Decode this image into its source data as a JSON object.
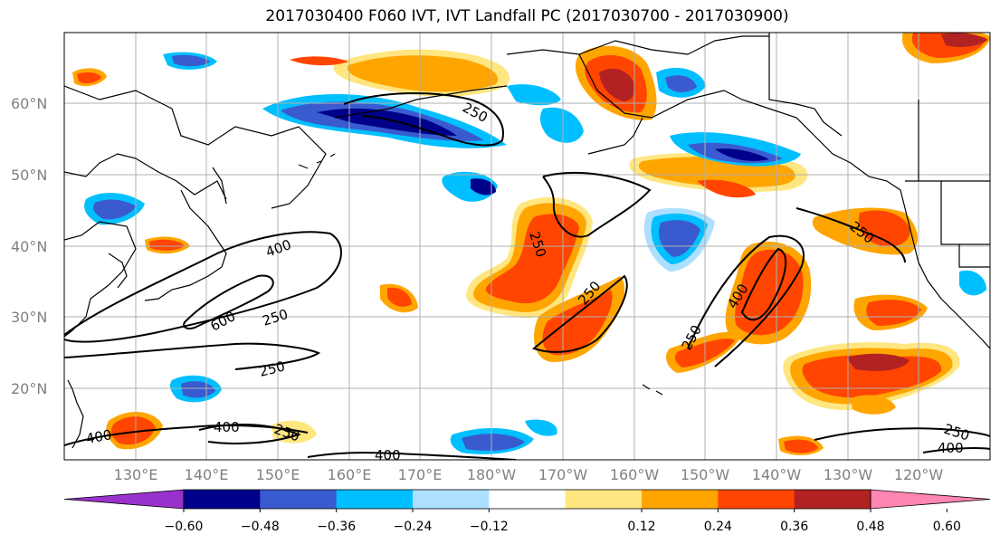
{
  "title": "2017030400 F060 IVT, IVT Landfall PC (2017030700 - 2017030900)",
  "lat_labels": [
    "60°N",
    "50°N",
    "40°N",
    "30°N",
    "20°N"
  ],
  "lon_labels": [
    "130°E",
    "140°E",
    "150°E",
    "160°E",
    "170°E",
    "180°W",
    "170°W",
    "160°W",
    "150°W",
    "140°W",
    "130°W",
    "120°W"
  ],
  "colorbar": {
    "colors": [
      "#9932CC",
      "#00008B",
      "#3A5BCF",
      "#00BFFF",
      "#ADDFFF",
      "#FFFFFF",
      "#FFE680",
      "#FFA500",
      "#FF4500",
      "#B22222",
      "#FF85B3"
    ],
    "tick_labels": [
      "−0.60",
      "−0.48",
      "−0.36",
      "−0.24",
      "−0.12",
      "0.12",
      "0.24",
      "0.36",
      "0.48",
      "0.60"
    ]
  },
  "contour_labels": {
    "c400_left": "400",
    "c600": "600",
    "c250_a": "250",
    "c250_b": "250",
    "c250_alaska": "250",
    "c250_mid": "250",
    "c250_mid2": "250",
    "c250_east": "250",
    "c400_east": "400",
    "c250_wa": "250",
    "c400_bottom1": "400",
    "c400_bottom2": "400",
    "c250_bottom": "250",
    "c400_bottom_left": "400",
    "c250_br": "250",
    "c400_br": "400"
  },
  "colors": {
    "grid": "#b0b0b0",
    "coast": "#000000",
    "neg_light": "#ADDFFF",
    "neg_mid": "#00BFFF",
    "neg_dark": "#3A5BCF",
    "neg_darkest": "#00008B",
    "pos_light": "#FFE680",
    "pos_mid": "#FFA500",
    "pos_dark": "#FF4500",
    "pos_darkest": "#B22222"
  }
}
